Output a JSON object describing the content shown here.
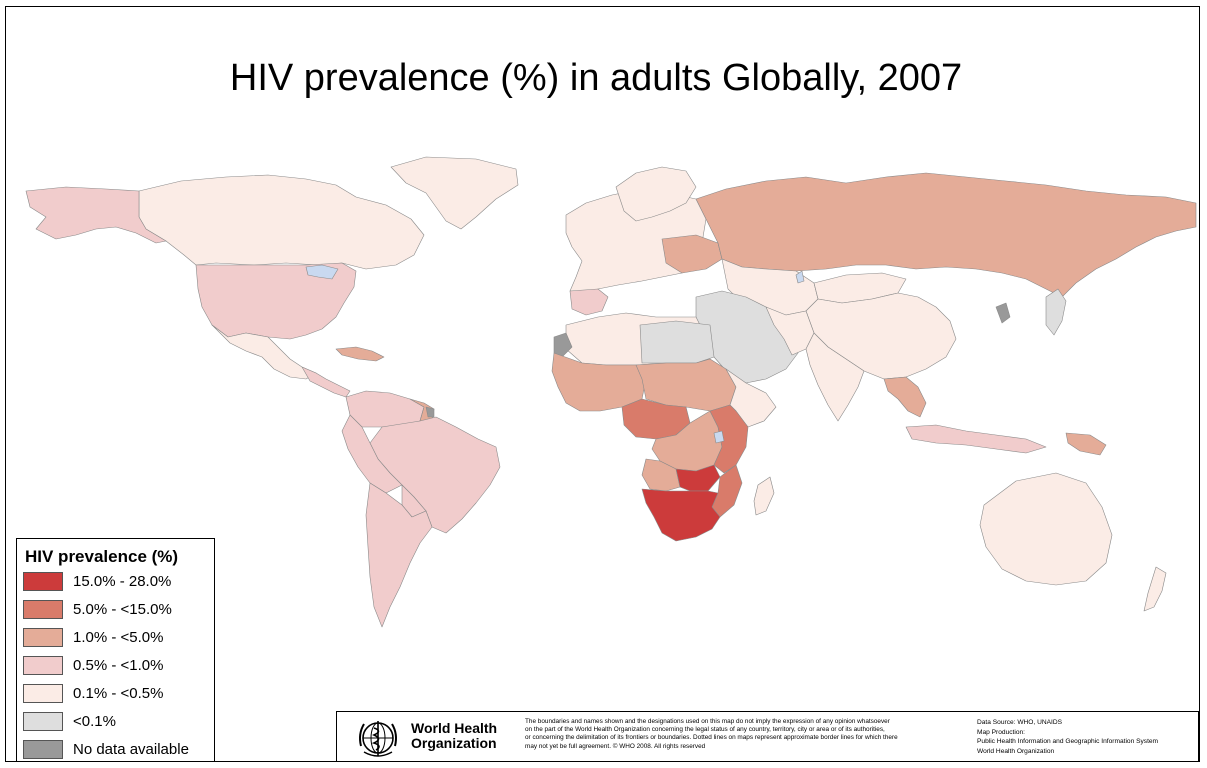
{
  "title": "HIV prevalence (%) in adults Globally, 2007",
  "colors": {
    "c15_28": "#cc3b3b",
    "c5_15": "#d97b6a",
    "c1_5": "#e4ac98",
    "c05_1": "#f1cccc",
    "c01_05": "#fbece6",
    "lt01": "#dedede",
    "nodata": "#999999",
    "water": "#c9d9f0",
    "border": "#777777"
  },
  "legend": {
    "title": "HIV prevalence (%)",
    "items": [
      {
        "label": "15.0% - 28.0%",
        "color": "#cc3b3b"
      },
      {
        "label": "5.0% - <15.0%",
        "color": "#d97b6a"
      },
      {
        "label": "1.0% - <5.0%",
        "color": "#e4ac98"
      },
      {
        "label": "0.5% - <1.0%",
        "color": "#f1cccc"
      },
      {
        "label": "0.1% - <0.5%",
        "color": "#fbece6"
      },
      {
        "label": "<0.1%",
        "color": "#dedede"
      },
      {
        "label": "No data available",
        "color": "#999999"
      }
    ]
  },
  "footer": {
    "org_line1": "World Health",
    "org_line2": "Organization",
    "disclaimer_1": "The boundaries and names shown and the designations used on this map do not imply the expression of any opinion whatsoever",
    "disclaimer_2": "on the part of the World Health Organization concerning the legal status of any country, territory, city or area or of its authorities,",
    "disclaimer_3": "or concerning the delimitation of its frontiers or boundaries.  Dotted lines on maps represent approximate border lines for which there",
    "disclaimer_4": "may not yet be full agreement.     © WHO 2008. All rights reserved",
    "data_source": "Data Source: WHO, UNAIDS",
    "map_production": "Map Production:",
    "production_unit": "Public Health Information and Geographic Information System",
    "production_org": "World Health Organization"
  }
}
